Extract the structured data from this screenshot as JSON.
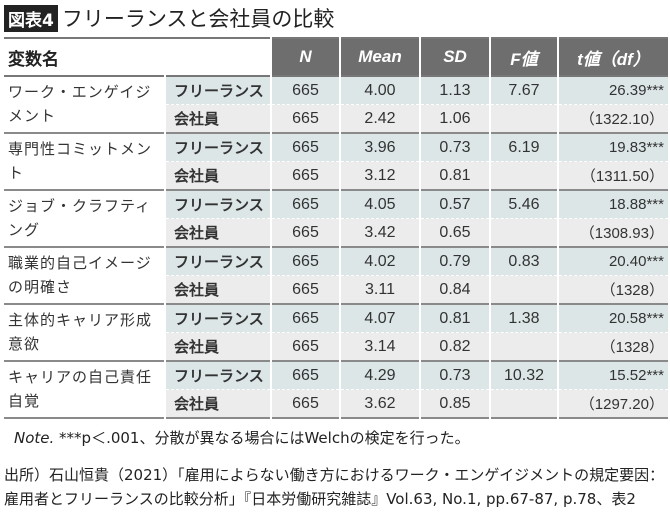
{
  "title": {
    "badge": "図表4",
    "text": "フリーランスと会社員の比較"
  },
  "table": {
    "headers": {
      "name": "変数名",
      "n": "N",
      "mean": "Mean",
      "sd": "SD",
      "f": "F値",
      "t": "t値（df）"
    },
    "groups": [
      {
        "name": "ワーク・エンゲイジメント",
        "rows": [
          {
            "cat": "フリーランス",
            "n": "665",
            "mean": "4.00",
            "sd": "1.13",
            "f": "7.67",
            "t": "26.39***"
          },
          {
            "cat": "会社員",
            "n": "665",
            "mean": "2.42",
            "sd": "1.06",
            "f": "",
            "t": "（1322.10）"
          }
        ]
      },
      {
        "name": "専門性コミットメント",
        "rows": [
          {
            "cat": "フリーランス",
            "n": "665",
            "mean": "3.96",
            "sd": "0.73",
            "f": "6.19",
            "t": "19.83***"
          },
          {
            "cat": "会社員",
            "n": "665",
            "mean": "3.12",
            "sd": "0.81",
            "f": "",
            "t": "（1311.50）"
          }
        ]
      },
      {
        "name": "ジョブ・クラフティング",
        "rows": [
          {
            "cat": "フリーランス",
            "n": "665",
            "mean": "4.05",
            "sd": "0.57",
            "f": "5.46",
            "t": "18.88***"
          },
          {
            "cat": "会社員",
            "n": "665",
            "mean": "3.42",
            "sd": "0.65",
            "f": "",
            "t": "（1308.93）"
          }
        ]
      },
      {
        "name": "職業的自己イメージの明確さ",
        "rows": [
          {
            "cat": "フリーランス",
            "n": "665",
            "mean": "4.02",
            "sd": "0.79",
            "f": "0.83",
            "t": "20.40***"
          },
          {
            "cat": "会社員",
            "n": "665",
            "mean": "3.11",
            "sd": "0.84",
            "f": "",
            "t": "（1328）"
          }
        ]
      },
      {
        "name": "主体的キャリア形成意欲",
        "rows": [
          {
            "cat": "フリーランス",
            "n": "665",
            "mean": "4.07",
            "sd": "0.81",
            "f": "1.38",
            "t": "20.58***"
          },
          {
            "cat": "会社員",
            "n": "665",
            "mean": "3.14",
            "sd": "0.82",
            "f": "",
            "t": "（1328）"
          }
        ]
      },
      {
        "name": "キャリアの自己責任自覚",
        "rows": [
          {
            "cat": "フリーランス",
            "n": "665",
            "mean": "4.29",
            "sd": "0.73",
            "f": "10.32",
            "t": "15.52***"
          },
          {
            "cat": "会社員",
            "n": "665",
            "mean": "3.62",
            "sd": "0.85",
            "f": "",
            "t": "（1297.20）"
          }
        ]
      }
    ]
  },
  "note": {
    "label": "Note.",
    "text": " ***p＜.001、分散が異なる場合にはWelchの検定を行った。"
  },
  "source": "出所）石山恒貴（2021）「雇用によらない働き方におけるワーク・エンゲイジメントの規定要因：雇用者とフリーランスの比較分析」『日本労働研究雑誌』Vol.63, No.1, pp.67-87, p.78、表2",
  "colors": {
    "header": "#6e6e6e",
    "freelance_row": "#dce6e6",
    "employee_row": "#ececec"
  }
}
